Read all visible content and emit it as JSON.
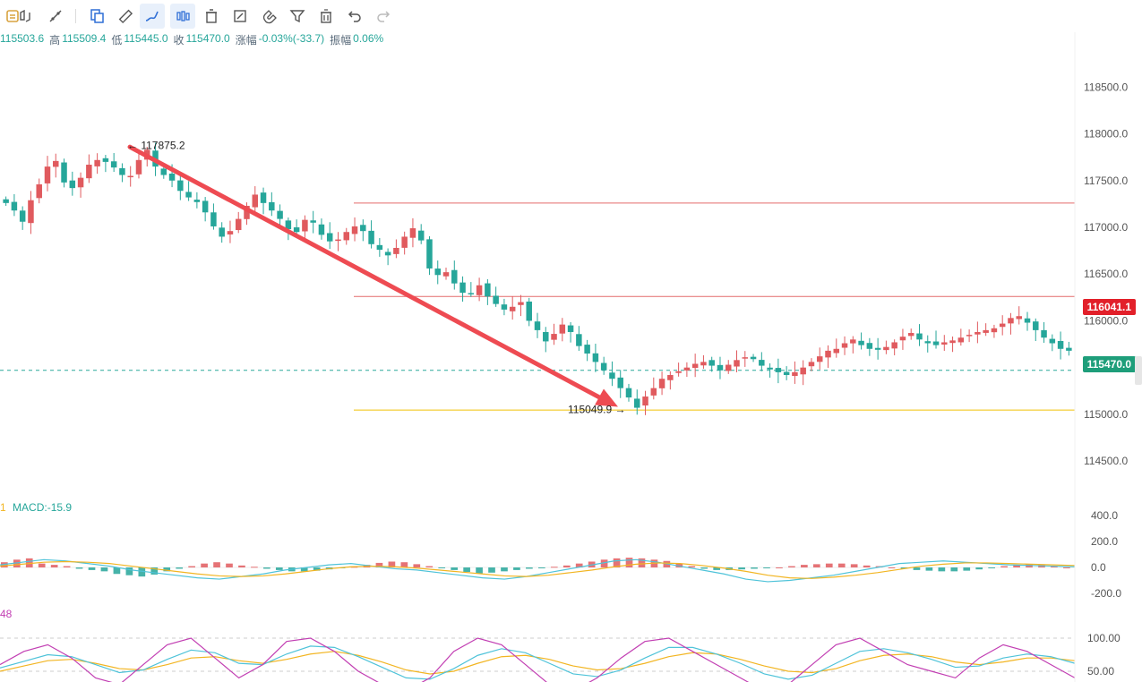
{
  "toolbar": {
    "tools": [
      {
        "name": "bank-icon",
        "active": false
      },
      {
        "name": "cycle-icon",
        "active": false
      },
      {
        "name": "trend-tool-icon",
        "active": false
      },
      {
        "name": "copy-icon",
        "active": false
      },
      {
        "name": "ruler-icon",
        "active": false
      },
      {
        "name": "brush-icon",
        "active": true
      },
      {
        "name": "candlestick-icon",
        "active": true
      },
      {
        "name": "delete-icon",
        "active": false
      },
      {
        "name": "edit-icon",
        "active": false
      },
      {
        "name": "magnet-icon",
        "active": false
      },
      {
        "name": "filter-icon",
        "active": false
      },
      {
        "name": "trash-icon",
        "active": false
      },
      {
        "name": "undo-icon",
        "active": false
      },
      {
        "name": "redo-icon",
        "active": false
      }
    ]
  },
  "ohlc": {
    "open_value": "115503.6",
    "high_label": "高",
    "high_value": "115509.4",
    "low_label": "低",
    "low_value": "115445.0",
    "close_label": "收",
    "close_value": "115470.0",
    "change_label": "涨幅",
    "change_value": "-0.03%(-33.7)",
    "amp_label": "振幅",
    "amp_value": "0.06%"
  },
  "annotations": {
    "high_marker": "117875.2",
    "low_marker": "115049.9"
  },
  "price_tags": {
    "last_price": "116041.1",
    "current_price": "115470.0"
  },
  "macd": {
    "prefix": "1",
    "label": "MACD:-15.9",
    "ticks": [
      "400.0",
      "200.0",
      "0.0",
      "-200.0"
    ]
  },
  "kdj": {
    "prefix": "48",
    "ticks": [
      "100.00",
      "50.00"
    ]
  },
  "colors": {
    "up": "#e05a5e",
    "down": "#26a69a",
    "arrow": "#ee4b52",
    "hline_red": "#e46b6b",
    "hline_yellow": "#f5d34a",
    "dashed_green": "#2aa89a",
    "tag_red": "#e2202a",
    "tag_green": "#1e9e7a",
    "macd_line": "#4fc3d9",
    "signal_line": "#f2b522",
    "k_line": "#c23fb3",
    "d_line": "#4fc3d9",
    "j_line": "#f2b522"
  },
  "chart_data": {
    "type": "candlestick",
    "price_axis": {
      "ticks": [
        "118500.0",
        "118000.0",
        "117500.0",
        "117000.0",
        "116500.0",
        "116000.0",
        "115500.0",
        "115000.0",
        "114500.0"
      ],
      "ylim": [
        114300,
        118800
      ]
    },
    "horizontal_lines": [
      117260,
      116260,
      115045
    ],
    "trend_arrow": {
      "from": 117860,
      "to": 115080
    },
    "close_series": [
      117260,
      117180,
      117060,
      117290,
      117460,
      117650,
      117710,
      117480,
      117420,
      117530,
      117670,
      117720,
      117700,
      117640,
      117560,
      117550,
      117720,
      117830,
      117650,
      117560,
      117500,
      117390,
      117320,
      117270,
      117160,
      117010,
      116900,
      116960,
      117090,
      117230,
      117350,
      117260,
      117180,
      117090,
      116980,
      116950,
      117080,
      117050,
      116920,
      116850,
      116870,
      116950,
      117010,
      116960,
      116820,
      116760,
      116700,
      116780,
      116900,
      116990,
      116860,
      116560,
      116490,
      116520,
      116400,
      116300,
      116290,
      116380,
      116260,
      116180,
      116120,
      116150,
      116200,
      116000,
      115900,
      115780,
      115860,
      115960,
      115880,
      115730,
      115650,
      115560,
      115470,
      115380,
      115280,
      115180,
      115070,
      115190,
      115280,
      115380,
      115420,
      115460,
      115500,
      115540,
      115560,
      115520,
      115470,
      115530,
      115580,
      115610,
      115590,
      115520,
      115480,
      115450,
      115420,
      115450,
      115500,
      115560,
      115620,
      115680,
      115700,
      115760,
      115800,
      115740,
      115700,
      115690,
      115720,
      115770,
      115830,
      115870,
      115800,
      115760,
      115740,
      115770,
      115790,
      115820,
      115850,
      115880,
      115900,
      115920,
      115970,
      116030,
      116050,
      115980,
      115900,
      115820,
      115760,
      115700,
      115680
    ],
    "macd": {
      "hist": [
        40,
        60,
        70,
        30,
        20,
        10,
        -10,
        -20,
        -30,
        -50,
        -60,
        -70,
        -55,
        -30,
        -10,
        10,
        30,
        40,
        30,
        15,
        5,
        -10,
        -20,
        -30,
        -30,
        -25,
        -15,
        -5,
        5,
        20,
        35,
        45,
        40,
        25,
        10,
        -5,
        -20,
        -35,
        -45,
        -40,
        -30,
        -20,
        -10,
        -5,
        5,
        15,
        30,
        45,
        60,
        70,
        75,
        70,
        60,
        50,
        30,
        10,
        -10,
        -20,
        -20,
        -15,
        -10,
        -5,
        0,
        10,
        20,
        25,
        30,
        30,
        25,
        15,
        10,
        0,
        -10,
        -20,
        -25,
        -30,
        -30,
        -25,
        -15,
        -5,
        10,
        20,
        25,
        20,
        10,
        0
      ],
      "macd_line": [
        20,
        40,
        60,
        50,
        30,
        10,
        -20,
        -40,
        -60,
        -80,
        -90,
        -70,
        -50,
        -20,
        0,
        20,
        30,
        10,
        -10,
        -20,
        -40,
        -60,
        -80,
        -90,
        -70,
        -40,
        -10,
        20,
        50,
        60,
        40,
        10,
        -20,
        -50,
        -90,
        -110,
        -100,
        -80,
        -60,
        -30,
        0,
        30,
        40,
        50,
        40,
        30,
        20,
        15,
        10,
        5
      ],
      "signal_line": [
        10,
        25,
        40,
        45,
        40,
        30,
        10,
        -10,
        -30,
        -50,
        -65,
        -70,
        -65,
        -50,
        -30,
        -10,
        5,
        10,
        5,
        -5,
        -20,
        -35,
        -50,
        -65,
        -70,
        -60,
        -40,
        -20,
        5,
        25,
        35,
        30,
        15,
        -5,
        -30,
        -60,
        -80,
        -85,
        -75,
        -60,
        -40,
        -15,
        10,
        25,
        35,
        35,
        30,
        25,
        20,
        15
      ]
    },
    "kdj": {
      "k": [
        60,
        80,
        90,
        70,
        40,
        30,
        60,
        90,
        100,
        70,
        40,
        60,
        95,
        100,
        80,
        50,
        30,
        20,
        40,
        80,
        100,
        90,
        60,
        30,
        20,
        40,
        70,
        95,
        100,
        80,
        60,
        40,
        20,
        30,
        60,
        90,
        100,
        80,
        60,
        50,
        40,
        70,
        90,
        80,
        60,
        40
      ],
      "d": [
        55,
        65,
        75,
        72,
        60,
        48,
        52,
        68,
        82,
        78,
        62,
        60,
        76,
        88,
        86,
        72,
        56,
        40,
        38,
        54,
        74,
        84,
        78,
        62,
        46,
        42,
        52,
        70,
        86,
        86,
        76,
        62,
        46,
        38,
        44,
        62,
        80,
        84,
        78,
        68,
        56,
        58,
        70,
        76,
        72,
        62
      ],
      "j": [
        50,
        58,
        66,
        68,
        62,
        54,
        52,
        60,
        70,
        72,
        66,
        62,
        68,
        76,
        80,
        74,
        64,
        52,
        46,
        50,
        62,
        72,
        74,
        68,
        58,
        52,
        54,
        62,
        72,
        78,
        76,
        68,
        58,
        50,
        48,
        54,
        66,
        74,
        76,
        72,
        64,
        60,
        64,
        70,
        70,
        66
      ]
    }
  }
}
